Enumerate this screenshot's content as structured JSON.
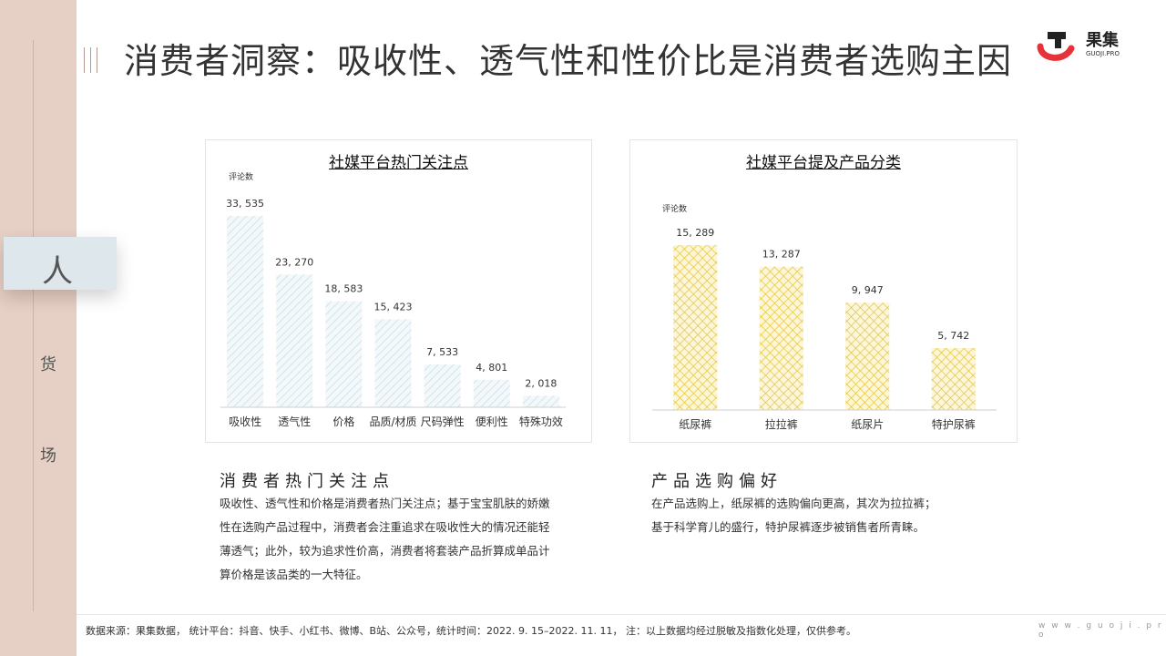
{
  "nav": {
    "items": [
      "人",
      "货",
      "场"
    ],
    "active": "人"
  },
  "title": "消费者洞察：吸收性、透气性和性价比是消费者选购主因",
  "logo": {
    "name": "果集",
    "sub": "GUOJI.PRO",
    "colors": [
      "#e8323a",
      "#222222"
    ]
  },
  "charts": {
    "left": {
      "title": "社媒平台热门关注点",
      "unit": "评论数"
    },
    "right": {
      "title": "社媒平台提及产品分类",
      "unit": "评论数"
    }
  },
  "chart_data": [
    {
      "type": "bar",
      "title": "社媒平台热门关注点",
      "ylabel": "评论数",
      "categories": [
        "吸收性",
        "透气性",
        "价格",
        "品质/材质",
        "尺码弹性",
        "便利性",
        "特殊功效"
      ],
      "values": [
        33535,
        23270,
        18583,
        15423,
        7533,
        4801,
        2018
      ],
      "labels": [
        "33, 535",
        "23, 270",
        "18, 583",
        "15, 423",
        "7, 533",
        "4, 801",
        "2, 018"
      ],
      "ylim": [
        0,
        33535
      ],
      "grid": false,
      "color": "#dce9f0"
    },
    {
      "type": "bar",
      "title": "社媒平台提及产品分类",
      "ylabel": "评论数",
      "categories": [
        "纸尿裤",
        "拉拉裤",
        "纸尿片",
        "特护尿裤"
      ],
      "values": [
        15289,
        13287,
        9947,
        5742
      ],
      "labels": [
        "15, 289",
        "13, 287",
        "9, 947",
        "5, 742"
      ],
      "ylim": [
        0,
        15289
      ],
      "grid": false,
      "color": "#e8cf3a"
    }
  ],
  "sections": {
    "left": {
      "heading": "消费者热门关注点",
      "body": [
        "吸收性、透气性和价格是消费者热门关注点；基于宝宝肌肤的娇嫩",
        "性在选购产品过程中，消费者会注重追求在吸收性大的情况还能轻",
        "薄透气；此外，较为追求性价高，消费者将套装产品折算成单品计",
        "算价格是该品类的一大特征。"
      ]
    },
    "right": {
      "heading": "产品选购偏好",
      "body": [
        "在产品选购上，纸尿裤的选购偏向更高，其次为拉拉裤；",
        "基于科学育儿的盛行，特护尿裤逐步被销售者所青睐。"
      ]
    }
  },
  "footer": {
    "text": "数据来源：果集数据，  统计平台：抖音、快手、小红书、微博、B站、公众号，统计时间：2022. 9. 15–2022. 11. 11，   注：以上数据均经过脱敏及指数化处理，仅供参考。",
    "site": "w w w . g u o j i . p r o"
  }
}
